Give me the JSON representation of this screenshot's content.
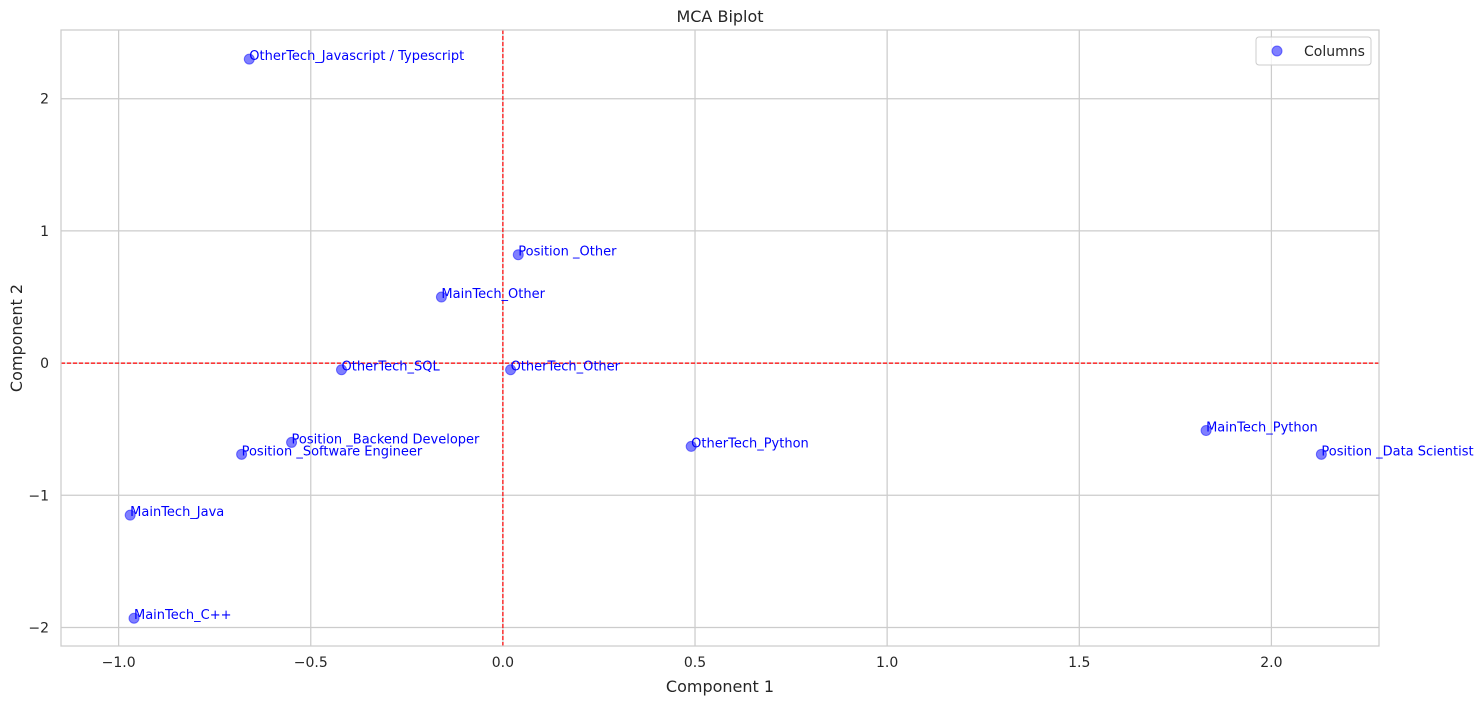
{
  "chart_data": {
    "type": "scatter",
    "title": "MCA Biplot",
    "xlabel": "Component 1",
    "ylabel": "Component 2",
    "xlim": [
      -1.15,
      2.28
    ],
    "ylim": [
      -2.14,
      2.52
    ],
    "xticks": [
      -1.0,
      -0.5,
      0.0,
      0.5,
      1.0,
      1.5,
      2.0
    ],
    "xtick_labels": [
      "−1.0",
      "−0.5",
      "0.0",
      "0.5",
      "1.0",
      "1.5",
      "2.0"
    ],
    "yticks": [
      -2,
      -1,
      0,
      1,
      2
    ],
    "ytick_labels": [
      "−2",
      "−1",
      "0",
      "1",
      "2"
    ],
    "grid": true,
    "legend": {
      "placement": "top-right",
      "entries": [
        "Columns"
      ]
    },
    "reference_lines": {
      "x": 0,
      "y": 0,
      "color": "#ff0000",
      "style": "dashed"
    },
    "point_color": "#0000ff",
    "label_color": "#0000ff",
    "series": [
      {
        "name": "Columns",
        "points": [
          {
            "label": "OtherTech_Javascript / Typescript",
            "x": -0.66,
            "y": 2.3
          },
          {
            "label": "Position _Other",
            "x": 0.04,
            "y": 0.82
          },
          {
            "label": "MainTech_Other",
            "x": -0.16,
            "y": 0.5
          },
          {
            "label": "OtherTech_SQL",
            "x": -0.42,
            "y": -0.05
          },
          {
            "label": "OtherTech_Other",
            "x": 0.02,
            "y": -0.05
          },
          {
            "label": "Position _Backend Developer",
            "x": -0.55,
            "y": -0.6
          },
          {
            "label": "Position _Software Engineer",
            "x": -0.68,
            "y": -0.69
          },
          {
            "label": "OtherTech_Python",
            "x": 0.49,
            "y": -0.63
          },
          {
            "label": "MainTech_Python",
            "x": 1.83,
            "y": -0.51
          },
          {
            "label": "Position _Data Scientist",
            "x": 2.13,
            "y": -0.69
          },
          {
            "label": "MainTech_Java",
            "x": -0.97,
            "y": -1.15
          },
          {
            "label": "MainTech_C++",
            "x": -0.96,
            "y": -1.93
          }
        ]
      }
    ]
  }
}
